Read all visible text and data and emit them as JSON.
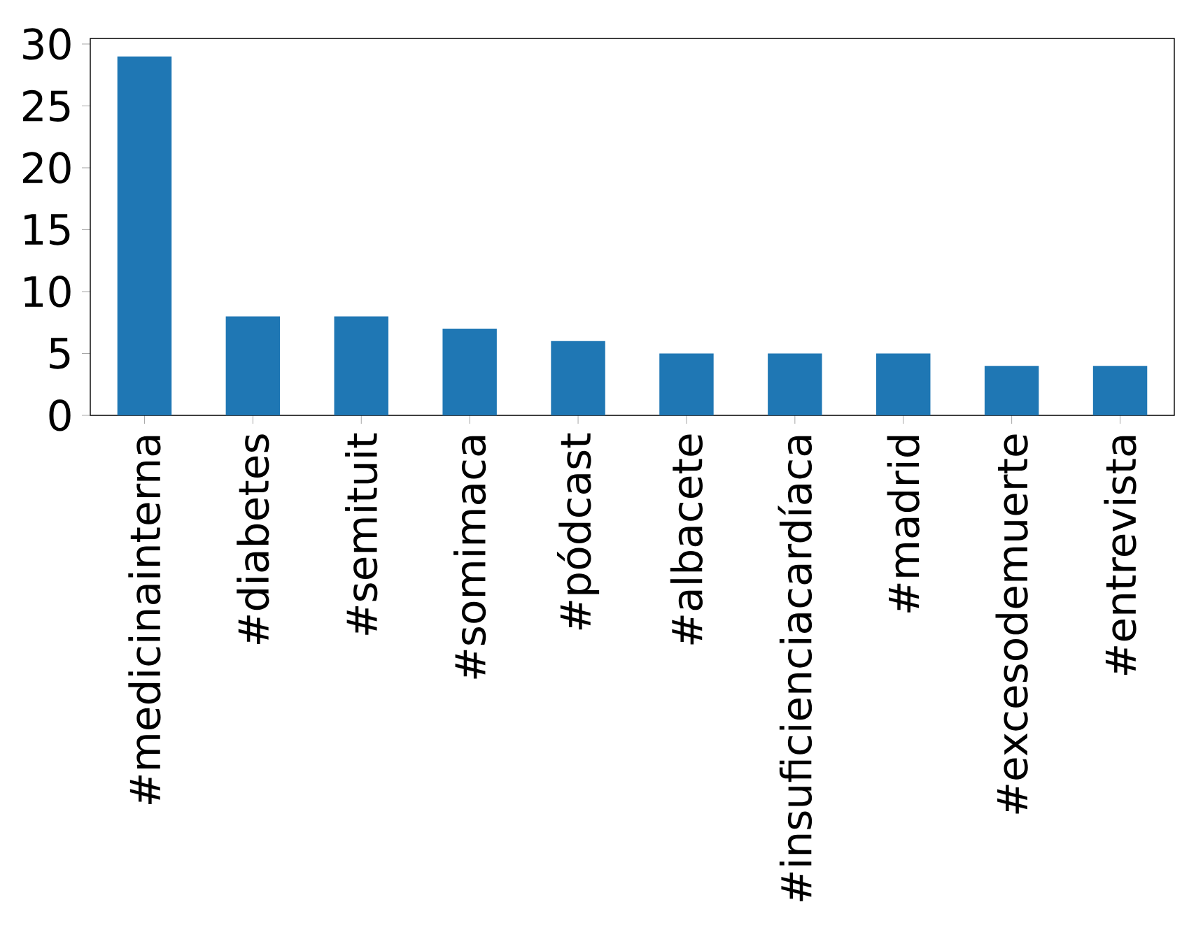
{
  "chart_data": {
    "type": "bar",
    "categories": [
      "#medicinainterna",
      "#diabetes",
      "#semituit",
      "#somimaca",
      "#pódcast",
      "#albacete",
      "#insuficienciacardíaca",
      "#madrid",
      "#excesodemuerte",
      "#entrevista"
    ],
    "values": [
      29,
      8,
      8,
      7,
      6,
      5,
      5,
      5,
      4,
      4
    ],
    "color": "#1f77b4",
    "ylim": [
      0,
      30.45
    ],
    "yticks": [
      0,
      5,
      10,
      15,
      20,
      25,
      30
    ],
    "grid": false
  }
}
